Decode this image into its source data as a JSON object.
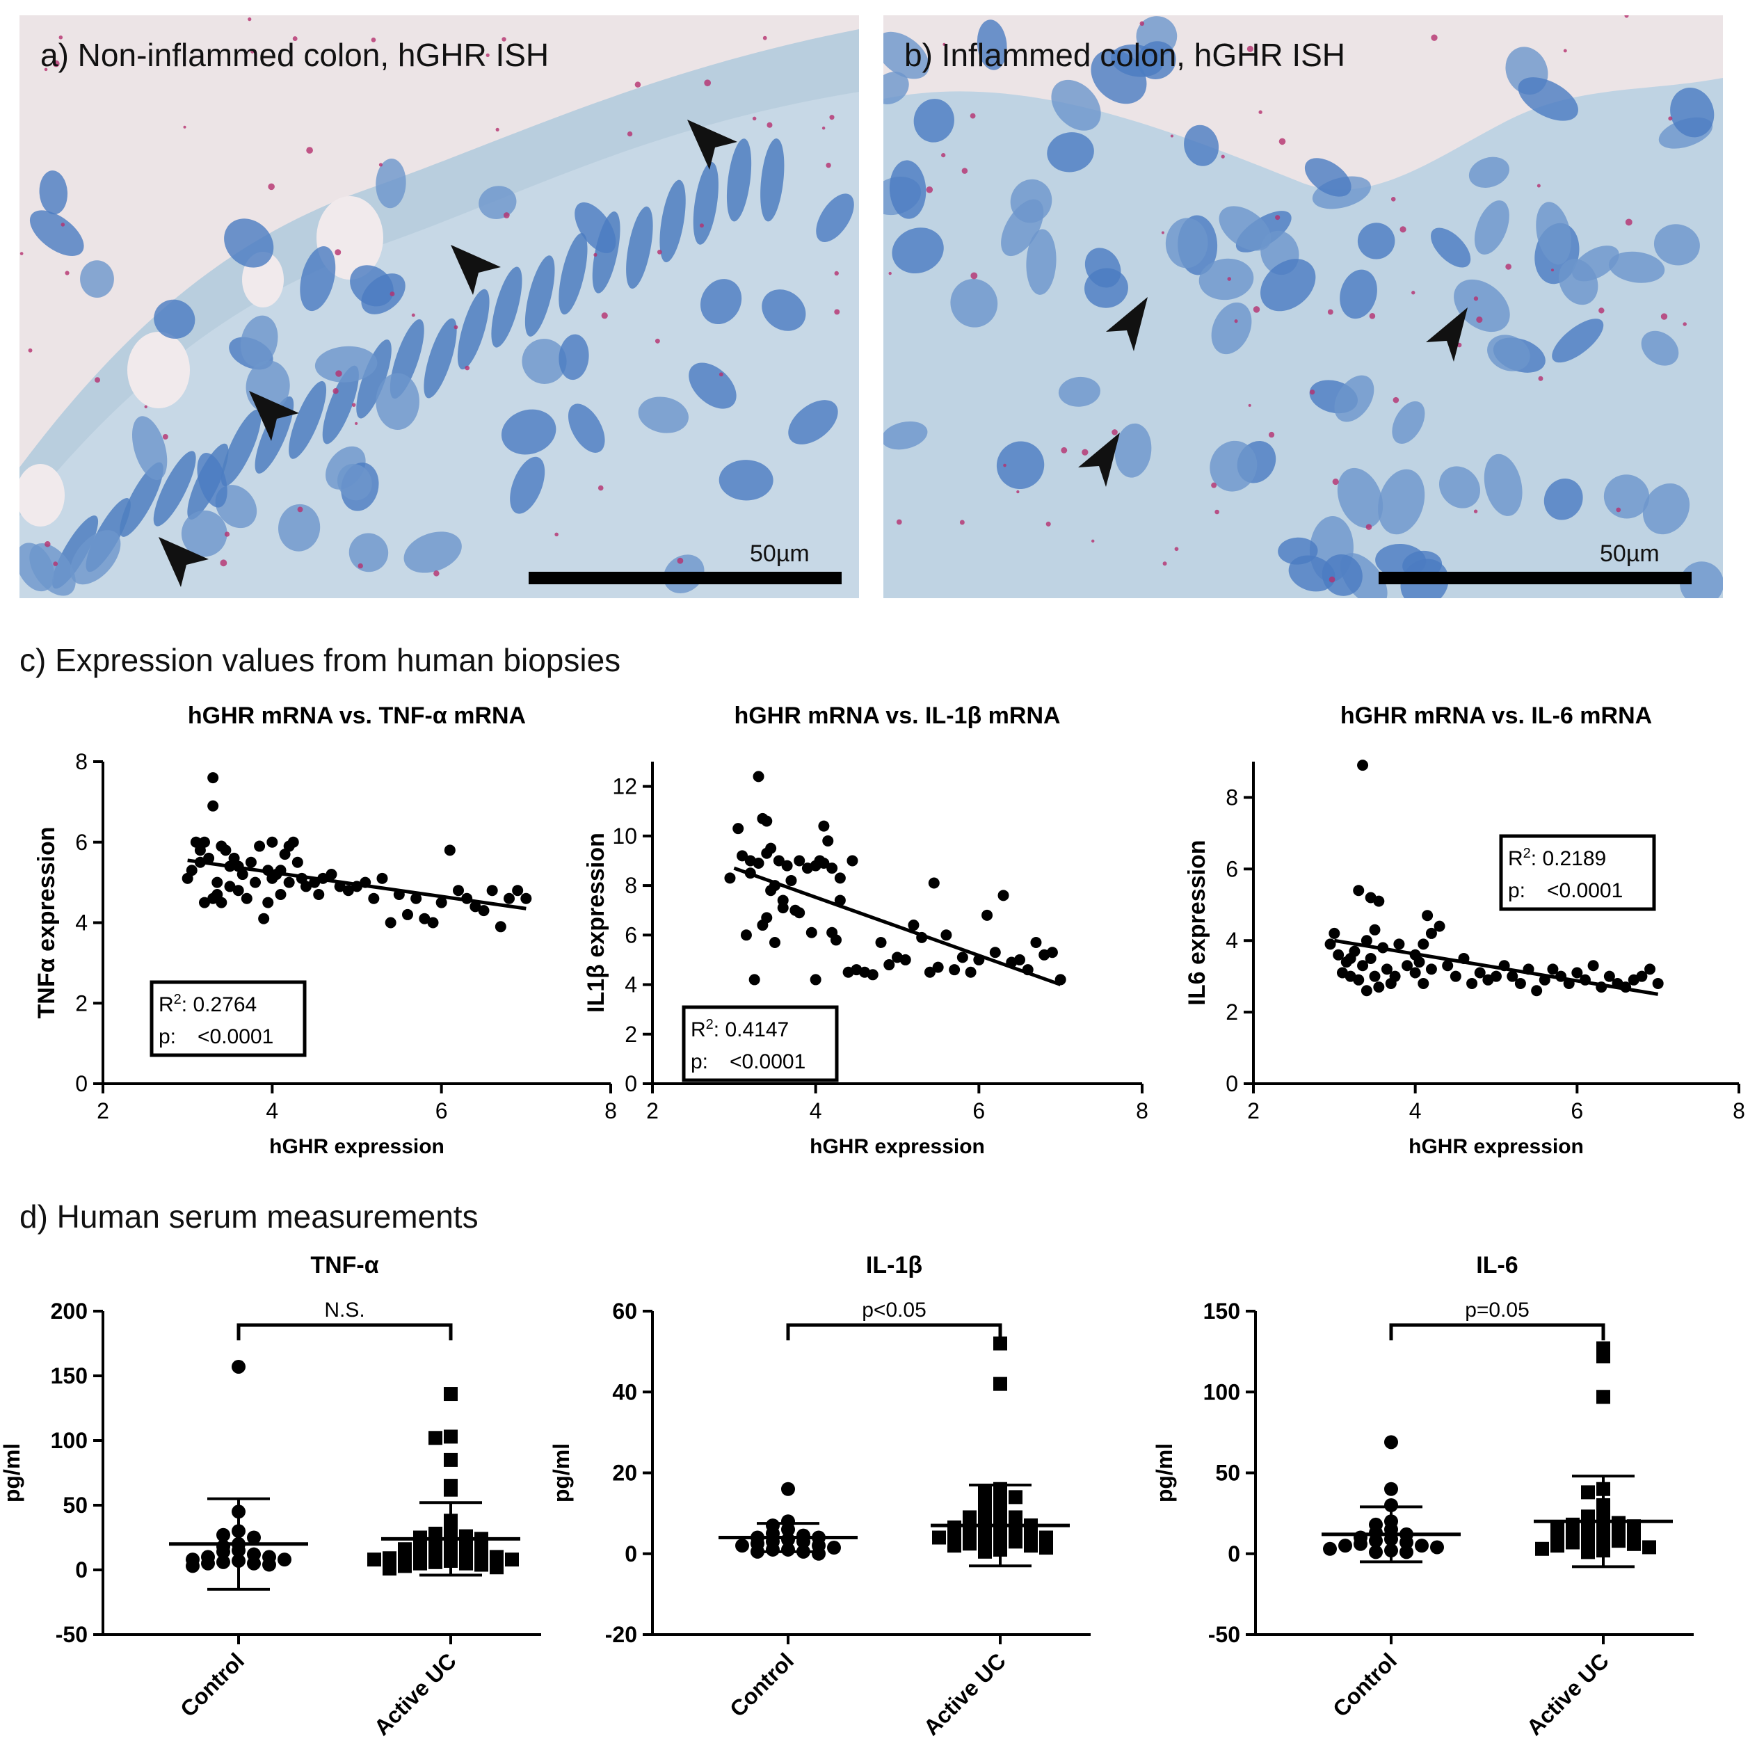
{
  "panels": {
    "a": {
      "title": "a) Non-inflammed colon, hGHR ISH",
      "scale_label": "50µm",
      "arrow_icon": "arrow-icon"
    },
    "b": {
      "title": "b) Inflammed colon, hGHR ISH",
      "scale_label": "50µm",
      "arrow_icon": "arrow-icon"
    }
  },
  "section_c": {
    "title": "c) Expression values from human biopsies"
  },
  "section_d": {
    "title": "d) Human serum measurements"
  },
  "chart_data": [
    {
      "type": "scatter",
      "title": "hGHR mRNA vs. TNF-α  mRNA",
      "xlabel": "hGHR expression",
      "ylabel": "TNFα expression",
      "xlim": [
        2,
        8
      ],
      "ylim": [
        0,
        8
      ],
      "xticks": [
        2,
        4,
        6,
        8
      ],
      "yticks": [
        0,
        2,
        4,
        6,
        8
      ],
      "fit": {
        "x": [
          3.0,
          7.0
        ],
        "y": [
          5.55,
          4.35
        ]
      },
      "stats": {
        "r2_label": "R",
        "r2_sup": "2",
        "r2_value": ": 0.2764",
        "p_label": "p:",
        "p_value": "<0.0001"
      },
      "x": [
        3.0,
        3.05,
        3.1,
        3.15,
        3.2,
        3.2,
        3.25,
        3.3,
        3.3,
        3.35,
        3.35,
        3.4,
        3.4,
        3.45,
        3.5,
        3.5,
        3.55,
        3.6,
        3.65,
        3.7,
        3.75,
        3.8,
        3.85,
        3.9,
        3.95,
        4.0,
        4.0,
        4.05,
        4.1,
        4.15,
        4.2,
        4.2,
        4.25,
        4.3,
        4.35,
        4.4,
        4.5,
        4.55,
        4.6,
        4.7,
        4.8,
        4.9,
        5.0,
        5.1,
        5.2,
        5.3,
        5.4,
        5.5,
        5.6,
        5.7,
        5.8,
        5.9,
        6.0,
        6.1,
        6.2,
        6.3,
        6.4,
        6.5,
        6.6,
        6.7,
        6.8,
        6.9,
        7.0,
        3.15,
        3.3,
        3.6,
        3.95,
        4.1
      ],
      "y": [
        5.1,
        5.3,
        6.0,
        5.5,
        4.5,
        6.0,
        5.6,
        7.6,
        6.9,
        5.0,
        4.7,
        5.9,
        4.5,
        5.8,
        5.4,
        4.9,
        5.6,
        4.8,
        5.2,
        4.6,
        5.5,
        5.0,
        5.9,
        4.1,
        5.3,
        6.0,
        5.1,
        5.2,
        4.7,
        5.7,
        5.9,
        5.0,
        6.0,
        5.5,
        5.1,
        4.9,
        5.0,
        4.7,
        5.1,
        5.2,
        4.9,
        4.8,
        4.9,
        5.0,
        4.6,
        5.1,
        4.0,
        4.7,
        4.2,
        4.6,
        4.1,
        4.0,
        4.5,
        5.8,
        4.8,
        4.6,
        4.4,
        4.3,
        4.8,
        3.9,
        4.6,
        4.8,
        4.6,
        5.8,
        4.6,
        5.4,
        4.5,
        5.3
      ]
    },
    {
      "type": "scatter",
      "title": "hGHR mRNA vs. IL-1β  mRNA",
      "xlabel": "hGHR expression",
      "ylabel": "IL1β expression",
      "xlim": [
        2,
        8
      ],
      "ylim": [
        0,
        13
      ],
      "xticks": [
        2,
        4,
        6,
        8
      ],
      "yticks": [
        0,
        2,
        4,
        6,
        8,
        10,
        12
      ],
      "fit": {
        "x": [
          3.0,
          7.0
        ],
        "y": [
          8.7,
          4.0
        ]
      },
      "stats": {
        "r2_label": "R",
        "r2_sup": "2",
        "r2_value": ": 0.4147",
        "p_label": "p:",
        "p_value": "<0.0001"
      },
      "x": [
        2.95,
        3.05,
        3.1,
        3.15,
        3.2,
        3.25,
        3.3,
        3.3,
        3.35,
        3.35,
        3.4,
        3.4,
        3.45,
        3.5,
        3.5,
        3.55,
        3.6,
        3.65,
        3.7,
        3.75,
        3.8,
        3.9,
        3.95,
        4.0,
        4.0,
        4.05,
        4.1,
        4.15,
        4.2,
        4.2,
        4.25,
        4.3,
        4.4,
        4.45,
        4.5,
        4.6,
        4.7,
        4.8,
        4.9,
        5.0,
        5.1,
        5.2,
        5.3,
        5.4,
        5.45,
        5.5,
        5.6,
        5.7,
        5.8,
        5.9,
        6.0,
        6.1,
        6.2,
        6.3,
        6.4,
        6.5,
        6.6,
        6.7,
        6.8,
        6.9,
        7.0,
        3.2,
        3.4,
        3.6,
        3.8,
        4.1,
        4.3,
        3.45
      ],
      "y": [
        8.3,
        10.3,
        9.2,
        6.0,
        9.0,
        4.2,
        8.9,
        12.4,
        10.7,
        6.4,
        6.7,
        10.6,
        9.5,
        8.0,
        5.7,
        9.0,
        7.1,
        8.8,
        8.2,
        7.0,
        9.0,
        8.7,
        6.1,
        8.8,
        4.2,
        9.0,
        10.4,
        9.8,
        8.7,
        6.1,
        5.8,
        8.3,
        4.5,
        9.0,
        4.6,
        4.5,
        4.4,
        5.7,
        4.8,
        5.1,
        5.0,
        6.4,
        5.9,
        4.5,
        8.1,
        4.7,
        6.0,
        4.6,
        5.1,
        4.5,
        5.0,
        6.8,
        5.3,
        7.6,
        4.9,
        5.0,
        4.6,
        5.7,
        5.2,
        5.3,
        4.2,
        8.5,
        9.3,
        7.4,
        6.9,
        8.9,
        7.4,
        7.8
      ]
    },
    {
      "type": "scatter",
      "title": "hGHR mRNA vs. IL-6 mRNA",
      "xlabel": "hGHR expression",
      "ylabel": "IL6 expression",
      "xlim": [
        2,
        8
      ],
      "ylim": [
        0,
        9
      ],
      "xticks": [
        2,
        4,
        6,
        8
      ],
      "yticks": [
        0,
        2,
        4,
        6,
        8
      ],
      "fit": {
        "x": [
          3.0,
          7.0
        ],
        "y": [
          4.0,
          2.5
        ]
      },
      "stats": {
        "r2_label": "R",
        "r2_sup": "2",
        "r2_value": ": 0.2189",
        "p_label": "p:",
        "p_value": "<0.0001"
      },
      "x": [
        2.95,
        3.0,
        3.05,
        3.1,
        3.15,
        3.2,
        3.25,
        3.3,
        3.3,
        3.35,
        3.35,
        3.4,
        3.4,
        3.45,
        3.5,
        3.5,
        3.55,
        3.6,
        3.65,
        3.7,
        3.8,
        3.9,
        4.0,
        4.0,
        4.05,
        4.1,
        4.15,
        4.2,
        4.2,
        4.3,
        4.4,
        4.5,
        4.6,
        4.7,
        4.8,
        4.9,
        5.0,
        5.1,
        5.2,
        5.3,
        5.4,
        5.5,
        5.6,
        5.7,
        5.8,
        5.9,
        6.0,
        6.1,
        6.2,
        6.3,
        6.4,
        6.5,
        6.6,
        6.7,
        6.8,
        6.9,
        7.0,
        3.2,
        3.45,
        3.55,
        3.75,
        4.1
      ],
      "y": [
        3.9,
        4.2,
        3.6,
        3.1,
        3.4,
        3.0,
        3.7,
        2.9,
        5.4,
        8.9,
        3.3,
        2.6,
        4.0,
        5.2,
        4.3,
        3.0,
        5.1,
        3.8,
        3.2,
        2.8,
        3.9,
        3.3,
        3.6,
        3.1,
        3.4,
        2.8,
        4.7,
        4.2,
        3.2,
        4.4,
        3.3,
        3.0,
        3.5,
        2.8,
        3.1,
        2.9,
        3.0,
        3.3,
        3.0,
        2.8,
        3.2,
        2.6,
        2.9,
        3.2,
        3.0,
        2.8,
        3.1,
        2.9,
        3.3,
        2.7,
        3.0,
        2.8,
        2.7,
        2.9,
        3.0,
        3.2,
        2.8,
        3.5,
        3.5,
        2.7,
        3.0,
        3.9
      ]
    },
    {
      "type": "scatter",
      "title": "TNF-α",
      "ylabel": "pg/ml",
      "categories": [
        "Control",
        "Active UC"
      ],
      "ylim": [
        -50,
        200
      ],
      "yticks": [
        -50,
        0,
        50,
        100,
        150,
        200
      ],
      "significance": "N.S.",
      "series": [
        {
          "values": [
            157,
            45,
            30,
            27,
            25,
            20,
            18,
            15,
            14,
            12,
            10,
            10,
            8,
            8,
            7,
            6,
            5,
            5,
            4,
            3
          ],
          "mean": 20,
          "sd": 35
        },
        {
          "values": [
            136,
            103,
            102,
            85,
            65,
            62,
            38,
            30,
            28,
            26,
            25,
            24,
            22,
            20,
            19,
            18,
            17,
            16,
            15,
            14,
            13,
            12,
            12,
            11,
            10,
            9,
            8,
            8,
            7,
            6,
            5,
            5,
            4,
            3,
            2,
            1
          ],
          "mean": 24,
          "sd": 28
        }
      ]
    },
    {
      "type": "scatter",
      "title": "IL-1β",
      "ylabel": "pg/ml",
      "categories": [
        "Control",
        "Active UC"
      ],
      "ylim": [
        -20,
        60
      ],
      "yticks": [
        -20,
        0,
        20,
        40,
        60
      ],
      "significance": "p<0.05",
      "series": [
        {
          "values": [
            16,
            8,
            7,
            6,
            5,
            4.5,
            4,
            4,
            3.5,
            3,
            3,
            2.5,
            2,
            2,
            1.5,
            1,
            1,
            0.5,
            0.5,
            0
          ],
          "mean": 4,
          "sd": 3.5
        },
        {
          "values": [
            52,
            42,
            16,
            15,
            14,
            13,
            12,
            10,
            10,
            9,
            9,
            8,
            8,
            7.5,
            7,
            7,
            6.5,
            6,
            6,
            5.5,
            5,
            5,
            4.5,
            4,
            4,
            3.5,
            3,
            3,
            2.5,
            2,
            2,
            1.5,
            1,
            0.5
          ],
          "mean": 7,
          "sd": 10
        }
      ]
    },
    {
      "type": "scatter",
      "title": "IL-6",
      "ylabel": "pg/ml",
      "categories": [
        "Control",
        "Active UC"
      ],
      "ylim": [
        -50,
        150
      ],
      "yticks": [
        -50,
        0,
        50,
        100,
        150
      ],
      "significance": "p=0.05",
      "series": [
        {
          "values": [
            69,
            40,
            30,
            20,
            18,
            15,
            13,
            12,
            10,
            9,
            8,
            7,
            6,
            5,
            5,
            4,
            3,
            2,
            1,
            1
          ],
          "mean": 12,
          "sd": 17
        },
        {
          "values": [
            127,
            122,
            97,
            40,
            38,
            30,
            25,
            23,
            22,
            20,
            19,
            18,
            17,
            16,
            15,
            14,
            13,
            12,
            11,
            10,
            9,
            8,
            8,
            7,
            6,
            5,
            4,
            3,
            2,
            1
          ],
          "mean": 20,
          "sd": 28
        }
      ]
    }
  ]
}
